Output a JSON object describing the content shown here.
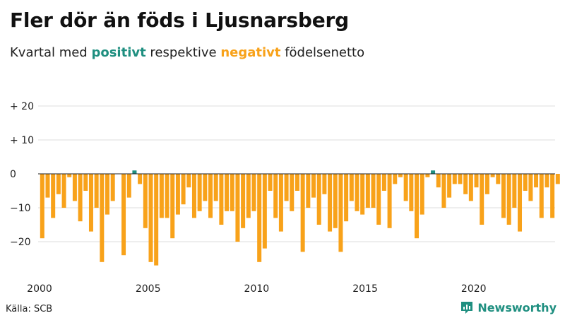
{
  "colors": {
    "positive": "#1f8f80",
    "negative": "#f8a21a",
    "grid": "#dcdcdc",
    "zero_line": "#222222",
    "brand": "#1f8f80"
  },
  "chart_data": {
    "type": "bar",
    "title": "Fler dör än föds i Ljusnarsberg",
    "subtitle": {
      "prefix": "Kvartal med ",
      "positive": "positivt",
      "middle": " respektive ",
      "negative": "negativt",
      "suffix": " födelsenetto"
    },
    "xlabel": "",
    "ylabel": "",
    "ylim": [
      -28,
      22
    ],
    "yticks": [
      {
        "value": 20,
        "label": "+ 20"
      },
      {
        "value": 10,
        "label": "+ 10"
      },
      {
        "value": 0,
        "label": "0"
      },
      {
        "value": -10,
        "label": "−10"
      },
      {
        "value": -20,
        "label": "−20"
      }
    ],
    "xlim": [
      2000,
      2023.75
    ],
    "xticks": [
      2000,
      2005,
      2010,
      2015,
      2020
    ],
    "xtick_labels": [
      "2000",
      "2005",
      "2010",
      "2015",
      "2020"
    ],
    "grid": true,
    "legend": "none",
    "series": [
      {
        "x": [
          "2000Q1",
          "2000Q2",
          "2000Q3",
          "2000Q4",
          "2001Q1",
          "2001Q2",
          "2001Q3",
          "2001Q4",
          "2002Q1",
          "2002Q2",
          "2002Q3",
          "2002Q4",
          "2003Q1",
          "2003Q2",
          "2003Q3",
          "2003Q4",
          "2004Q1",
          "2004Q2",
          "2004Q3",
          "2004Q4",
          "2005Q1",
          "2005Q2",
          "2005Q3",
          "2005Q4",
          "2006Q1",
          "2006Q2",
          "2006Q3",
          "2006Q4",
          "2007Q1",
          "2007Q2",
          "2007Q3",
          "2007Q4",
          "2008Q1",
          "2008Q2",
          "2008Q3",
          "2008Q4",
          "2009Q1",
          "2009Q2",
          "2009Q3",
          "2009Q4",
          "2010Q1",
          "2010Q2",
          "2010Q3",
          "2010Q4",
          "2011Q1",
          "2011Q2",
          "2011Q3",
          "2011Q4",
          "2012Q1",
          "2012Q2",
          "2012Q3",
          "2012Q4",
          "2013Q1",
          "2013Q2",
          "2013Q3",
          "2013Q4",
          "2014Q1",
          "2014Q2",
          "2014Q3",
          "2014Q4",
          "2015Q1",
          "2015Q2",
          "2015Q3",
          "2015Q4",
          "2016Q1",
          "2016Q2",
          "2016Q3",
          "2016Q4",
          "2017Q1",
          "2017Q2",
          "2017Q3",
          "2017Q4",
          "2018Q1",
          "2018Q2",
          "2018Q3",
          "2018Q4",
          "2019Q1",
          "2019Q2",
          "2019Q3",
          "2019Q4",
          "2020Q1",
          "2020Q2",
          "2020Q3",
          "2020Q4",
          "2021Q1",
          "2021Q2",
          "2021Q3",
          "2021Q4",
          "2022Q1",
          "2022Q2",
          "2022Q3",
          "2022Q4",
          "2023Q1",
          "2023Q2",
          "2023Q3",
          "2023Q4"
        ],
        "values": [
          -19,
          -7,
          -13,
          -6,
          -10,
          -1,
          -8,
          -14,
          -5,
          -17,
          -10,
          -26,
          -12,
          -8,
          0,
          -24,
          -7,
          1,
          -3,
          -16,
          -26,
          -27,
          -13,
          -13,
          -19,
          -12,
          -9,
          -4,
          -13,
          -11,
          -8,
          -13,
          -8,
          -15,
          -11,
          -11,
          -20,
          -16,
          -13,
          -11,
          -26,
          -22,
          -5,
          -13,
          -17,
          -8,
          -11,
          -5,
          -23,
          -10,
          -7,
          -15,
          -6,
          -17,
          -16,
          -23,
          -14,
          -8,
          -11,
          -12,
          -10,
          -10,
          -15,
          -5,
          -16,
          -3,
          -1,
          -8,
          -11,
          -19,
          -12,
          -1,
          1,
          -4,
          -10,
          -7,
          -3,
          -3,
          -6,
          -8,
          -4,
          -15,
          -6,
          -1,
          -3,
          -13,
          -15,
          -10,
          -17,
          -5,
          -8,
          -4,
          -13,
          -4,
          -13,
          -3
        ]
      }
    ]
  },
  "footer": {
    "source": "Källa: SCB",
    "brand": "Newsworthy"
  }
}
